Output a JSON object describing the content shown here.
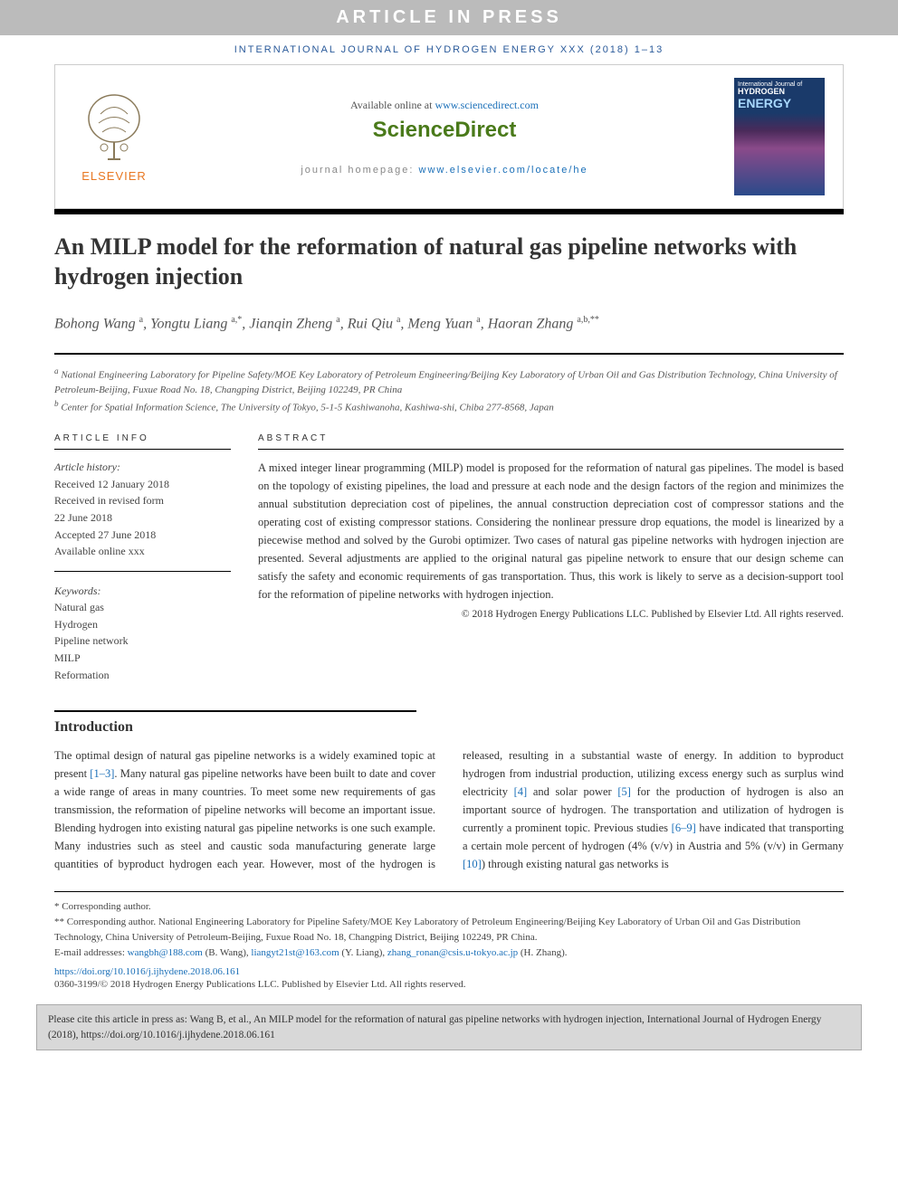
{
  "banner": "ARTICLE IN PRESS",
  "journal_line": "INTERNATIONAL JOURNAL OF HYDROGEN ENERGY XXX (2018) 1–13",
  "header": {
    "available_prefix": "Available online at ",
    "available_link": "www.sciencedirect.com",
    "brand": "ScienceDirect",
    "homepage_prefix": "journal homepage: ",
    "homepage_link": "www.elsevier.com/locate/he",
    "elsevier": "ELSEVIER",
    "cover_top": "International Journal of",
    "cover_h": "HYDROGEN",
    "cover_e": "ENERGY"
  },
  "title": "An MILP model for the reformation of natural gas pipeline networks with hydrogen injection",
  "authors_html": "Bohong Wang <sup>a</sup>, Yongtu Liang <sup>a,*</sup>, Jianqin Zheng <sup>a</sup>, Rui Qiu <sup>a</sup>, Meng Yuan <sup>a</sup>, Haoran Zhang <sup>a,b,**</sup>",
  "affiliations": {
    "a": "National Engineering Laboratory for Pipeline Safety/MOE Key Laboratory of Petroleum Engineering/Beijing Key Laboratory of Urban Oil and Gas Distribution Technology, China University of Petroleum-Beijing, Fuxue Road No. 18, Changping District, Beijing 102249, PR China",
    "b": "Center for Spatial Information Science, The University of Tokyo, 5-1-5 Kashiwanoha, Kashiwa-shi, Chiba 277-8568, Japan"
  },
  "info": {
    "heading": "ARTICLE INFO",
    "history_label": "Article history:",
    "history": [
      "Received 12 January 2018",
      "Received in revised form",
      "22 June 2018",
      "Accepted 27 June 2018",
      "Available online xxx"
    ],
    "keywords_label": "Keywords:",
    "keywords": [
      "Natural gas",
      "Hydrogen",
      "Pipeline network",
      "MILP",
      "Reformation"
    ]
  },
  "abstract": {
    "heading": "ABSTRACT",
    "text": "A mixed integer linear programming (MILP) model is proposed for the reformation of natural gas pipelines. The model is based on the topology of existing pipelines, the load and pressure at each node and the design factors of the region and minimizes the annual substitution depreciation cost of pipelines, the annual construction depreciation cost of compressor stations and the operating cost of existing compressor stations. Considering the nonlinear pressure drop equations, the model is linearized by a piecewise method and solved by the Gurobi optimizer. Two cases of natural gas pipeline networks with hydrogen injection are presented. Several adjustments are applied to the original natural gas pipeline network to ensure that our design scheme can satisfy the safety and economic requirements of gas transportation. Thus, this work is likely to serve as a decision-support tool for the reformation of pipeline networks with hydrogen injection.",
    "copyright": "© 2018 Hydrogen Energy Publications LLC. Published by Elsevier Ltd. All rights reserved."
  },
  "intro": {
    "heading": "Introduction",
    "p1_a": "The optimal design of natural gas pipeline networks is a widely examined topic at present ",
    "ref1": "[1–3]",
    "p1_b": ". Many natural gas pipeline networks have been built to date and cover a wide range of areas in many countries. To meet some new requirements of gas transmission, the reformation of pipeline networks will become an important issue. Blending hydrogen into existing natural gas pipeline networks is one such example. Many industries such as steel and caustic soda manufacturing generate large quantities of byproduct hydrogen each year. However, most of the hydrogen is released, resulting in a substantial waste of energy. In addition to byproduct hydrogen from industrial production, utilizing excess energy such as surplus wind electricity ",
    "ref4": "[4]",
    "p1_c": " and solar power ",
    "ref5": "[5]",
    "p1_d": " for the production of hydrogen is also an important source of hydrogen. The transportation and utilization of hydrogen is currently a prominent topic. Previous studies ",
    "ref69": "[6–9]",
    "p1_e": " have indicated that transporting a certain mole percent of hydrogen (4% (v/v) in Austria and 5% (v/v) in Germany ",
    "ref10": "[10]",
    "p1_f": ") through existing natural gas networks is"
  },
  "footnotes": {
    "corr1": "* Corresponding author.",
    "corr2": "** Corresponding author. National Engineering Laboratory for Pipeline Safety/MOE Key Laboratory of Petroleum Engineering/Beijing Key Laboratory of Urban Oil and Gas Distribution Technology, China University of Petroleum-Beijing, Fuxue Road No. 18, Changping District, Beijing 102249, PR China.",
    "emails_prefix": "E-mail addresses: ",
    "email1": "wangbh@188.com",
    "email1_name": " (B. Wang), ",
    "email2": "liangyt21st@163.com",
    "email2_name": " (Y. Liang), ",
    "email3": "zhang_ronan@csis.u-tokyo.ac.jp",
    "email3_name": " (H. Zhang)."
  },
  "doi": "https://doi.org/10.1016/j.ijhydene.2018.06.161",
  "issn_copyright": "0360-3199/© 2018 Hydrogen Energy Publications LLC. Published by Elsevier Ltd. All rights reserved.",
  "citebox": "Please cite this article in press as: Wang B, et al., An MILP model for the reformation of natural gas pipeline networks with hydrogen injection, International Journal of Hydrogen Energy (2018), https://doi.org/10.1016/j.ijhydene.2018.06.161",
  "colors": {
    "link": "#1a6fb8",
    "brand_green": "#4a7a1a",
    "elsevier_orange": "#e87722"
  }
}
